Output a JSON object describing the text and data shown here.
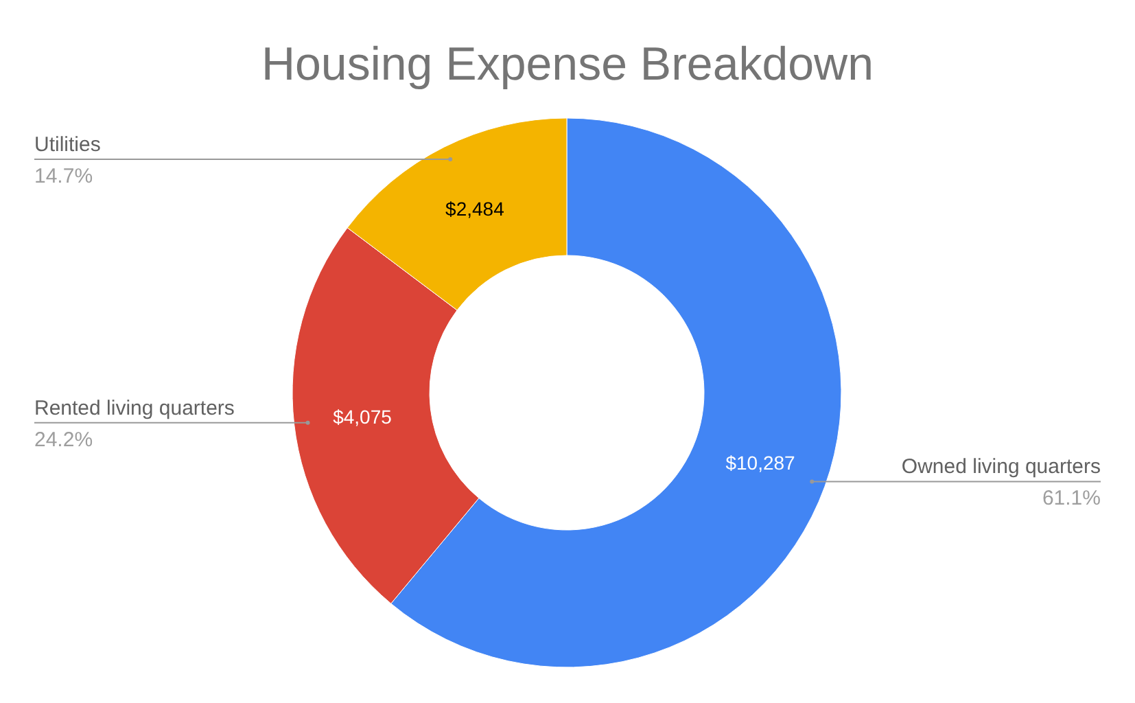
{
  "chart_data": {
    "type": "donut",
    "title": "Housing Expense Breakdown",
    "categories": [
      "Owned living quarters",
      "Rented living quarters",
      "Utilities"
    ],
    "values": [
      10287,
      4075,
      2484
    ],
    "colors": [
      "#4285f4",
      "#db4437",
      "#f4b400"
    ],
    "value_labels": [
      "$10,287",
      "$4,075",
      "$2,484"
    ],
    "annotations": [
      "61.1%",
      "24.2%",
      "14.7%"
    ],
    "legend": false
  }
}
